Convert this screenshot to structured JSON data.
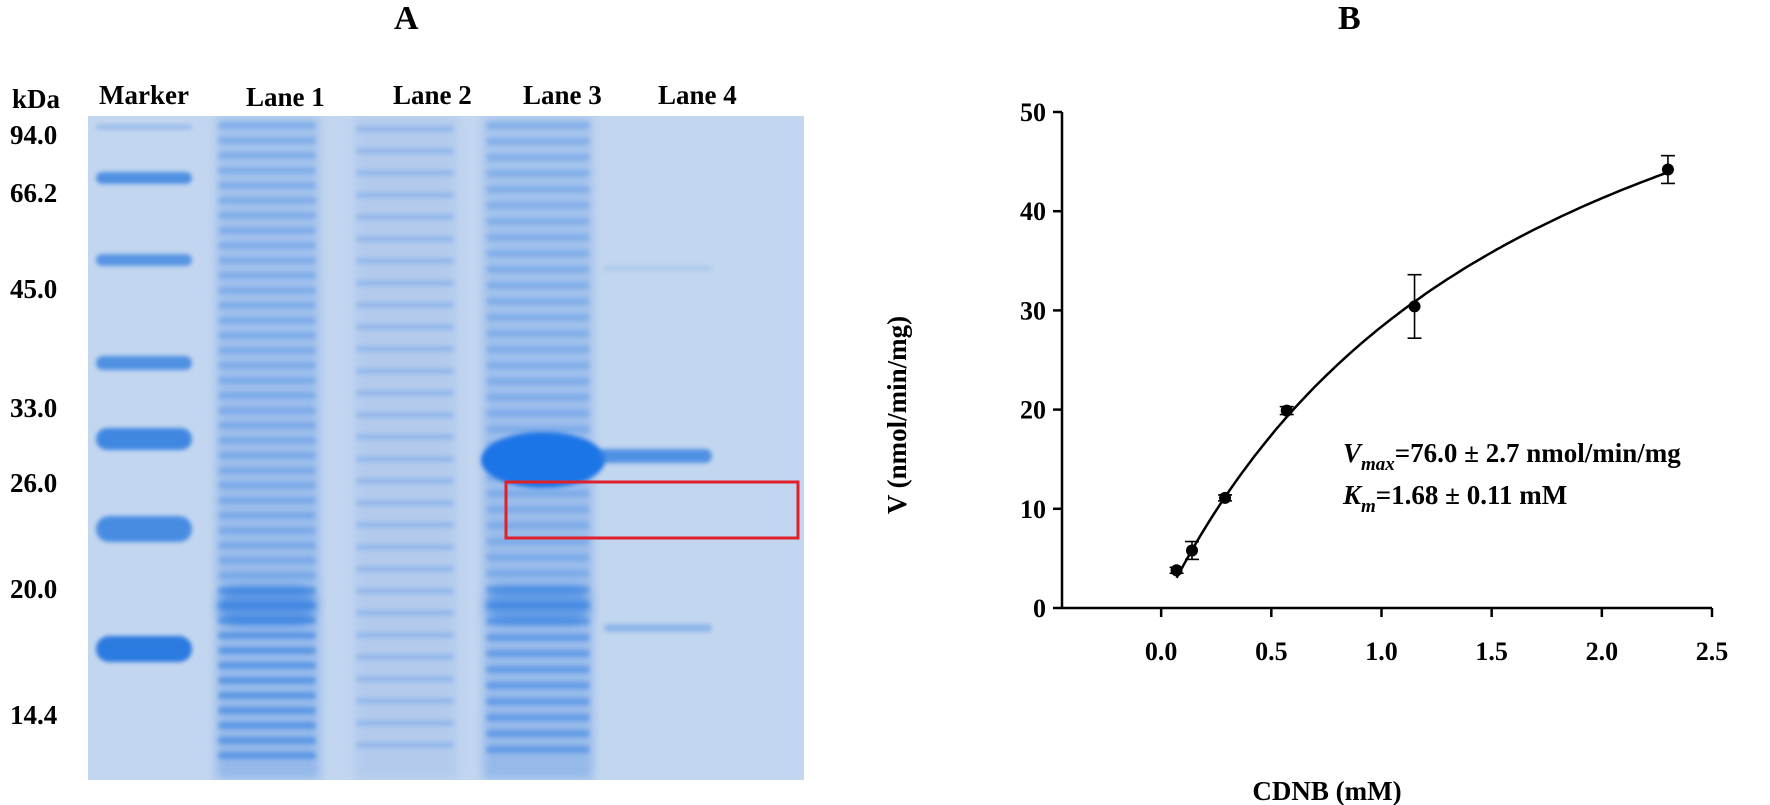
{
  "figure": {
    "panel_a_label": "A",
    "panel_b_label": "B"
  },
  "gel": {
    "unit_label": "kDa",
    "lane_labels": [
      "Marker",
      "Lane 1",
      "Lane 2",
      "Lane 3",
      "Lane 4"
    ],
    "marker_weights": [
      "94.0",
      "66.2",
      "45.0",
      "33.0",
      "26.0",
      "20.0",
      "14.4"
    ],
    "highlight_color": "#e0202a",
    "band_color": "#2a7ae0",
    "background_color": "#c3d6ef"
  },
  "chart_data": {
    "type": "scatter",
    "title": "",
    "xlabel": "CDNB (mM)",
    "ylabel": "V (nmol/min/mg)",
    "xlim": [
      -0.45,
      2.5
    ],
    "ylim": [
      0,
      50
    ],
    "x_ticks": [
      "0.0",
      "0.5",
      "1.0",
      "1.5",
      "2.0",
      "2.5"
    ],
    "y_ticks": [
      "0",
      "10",
      "20",
      "30",
      "40",
      "50"
    ],
    "grid": false,
    "points": [
      {
        "x": 0.07,
        "y": 3.8,
        "err": 0.3
      },
      {
        "x": 0.14,
        "y": 5.8,
        "err": 0.9
      },
      {
        "x": 0.29,
        "y": 11.1,
        "err": 0.3
      },
      {
        "x": 0.57,
        "y": 19.9,
        "err": 0.4
      },
      {
        "x": 1.15,
        "y": 30.4,
        "err": 3.2
      },
      {
        "x": 2.3,
        "y": 44.2,
        "err": 1.4
      }
    ],
    "fit": {
      "model": "Michaelis-Menten",
      "vmax": 76.0,
      "km": 1.68
    },
    "annotations": {
      "vmax_symbol": "V",
      "vmax_subscript": "max",
      "vmax_text": "=76.0 ±  2.7 nmol/min/mg",
      "km_symbol": "K",
      "km_subscript": "m",
      "km_text": "=1.68 ±  0.11 mM"
    }
  }
}
